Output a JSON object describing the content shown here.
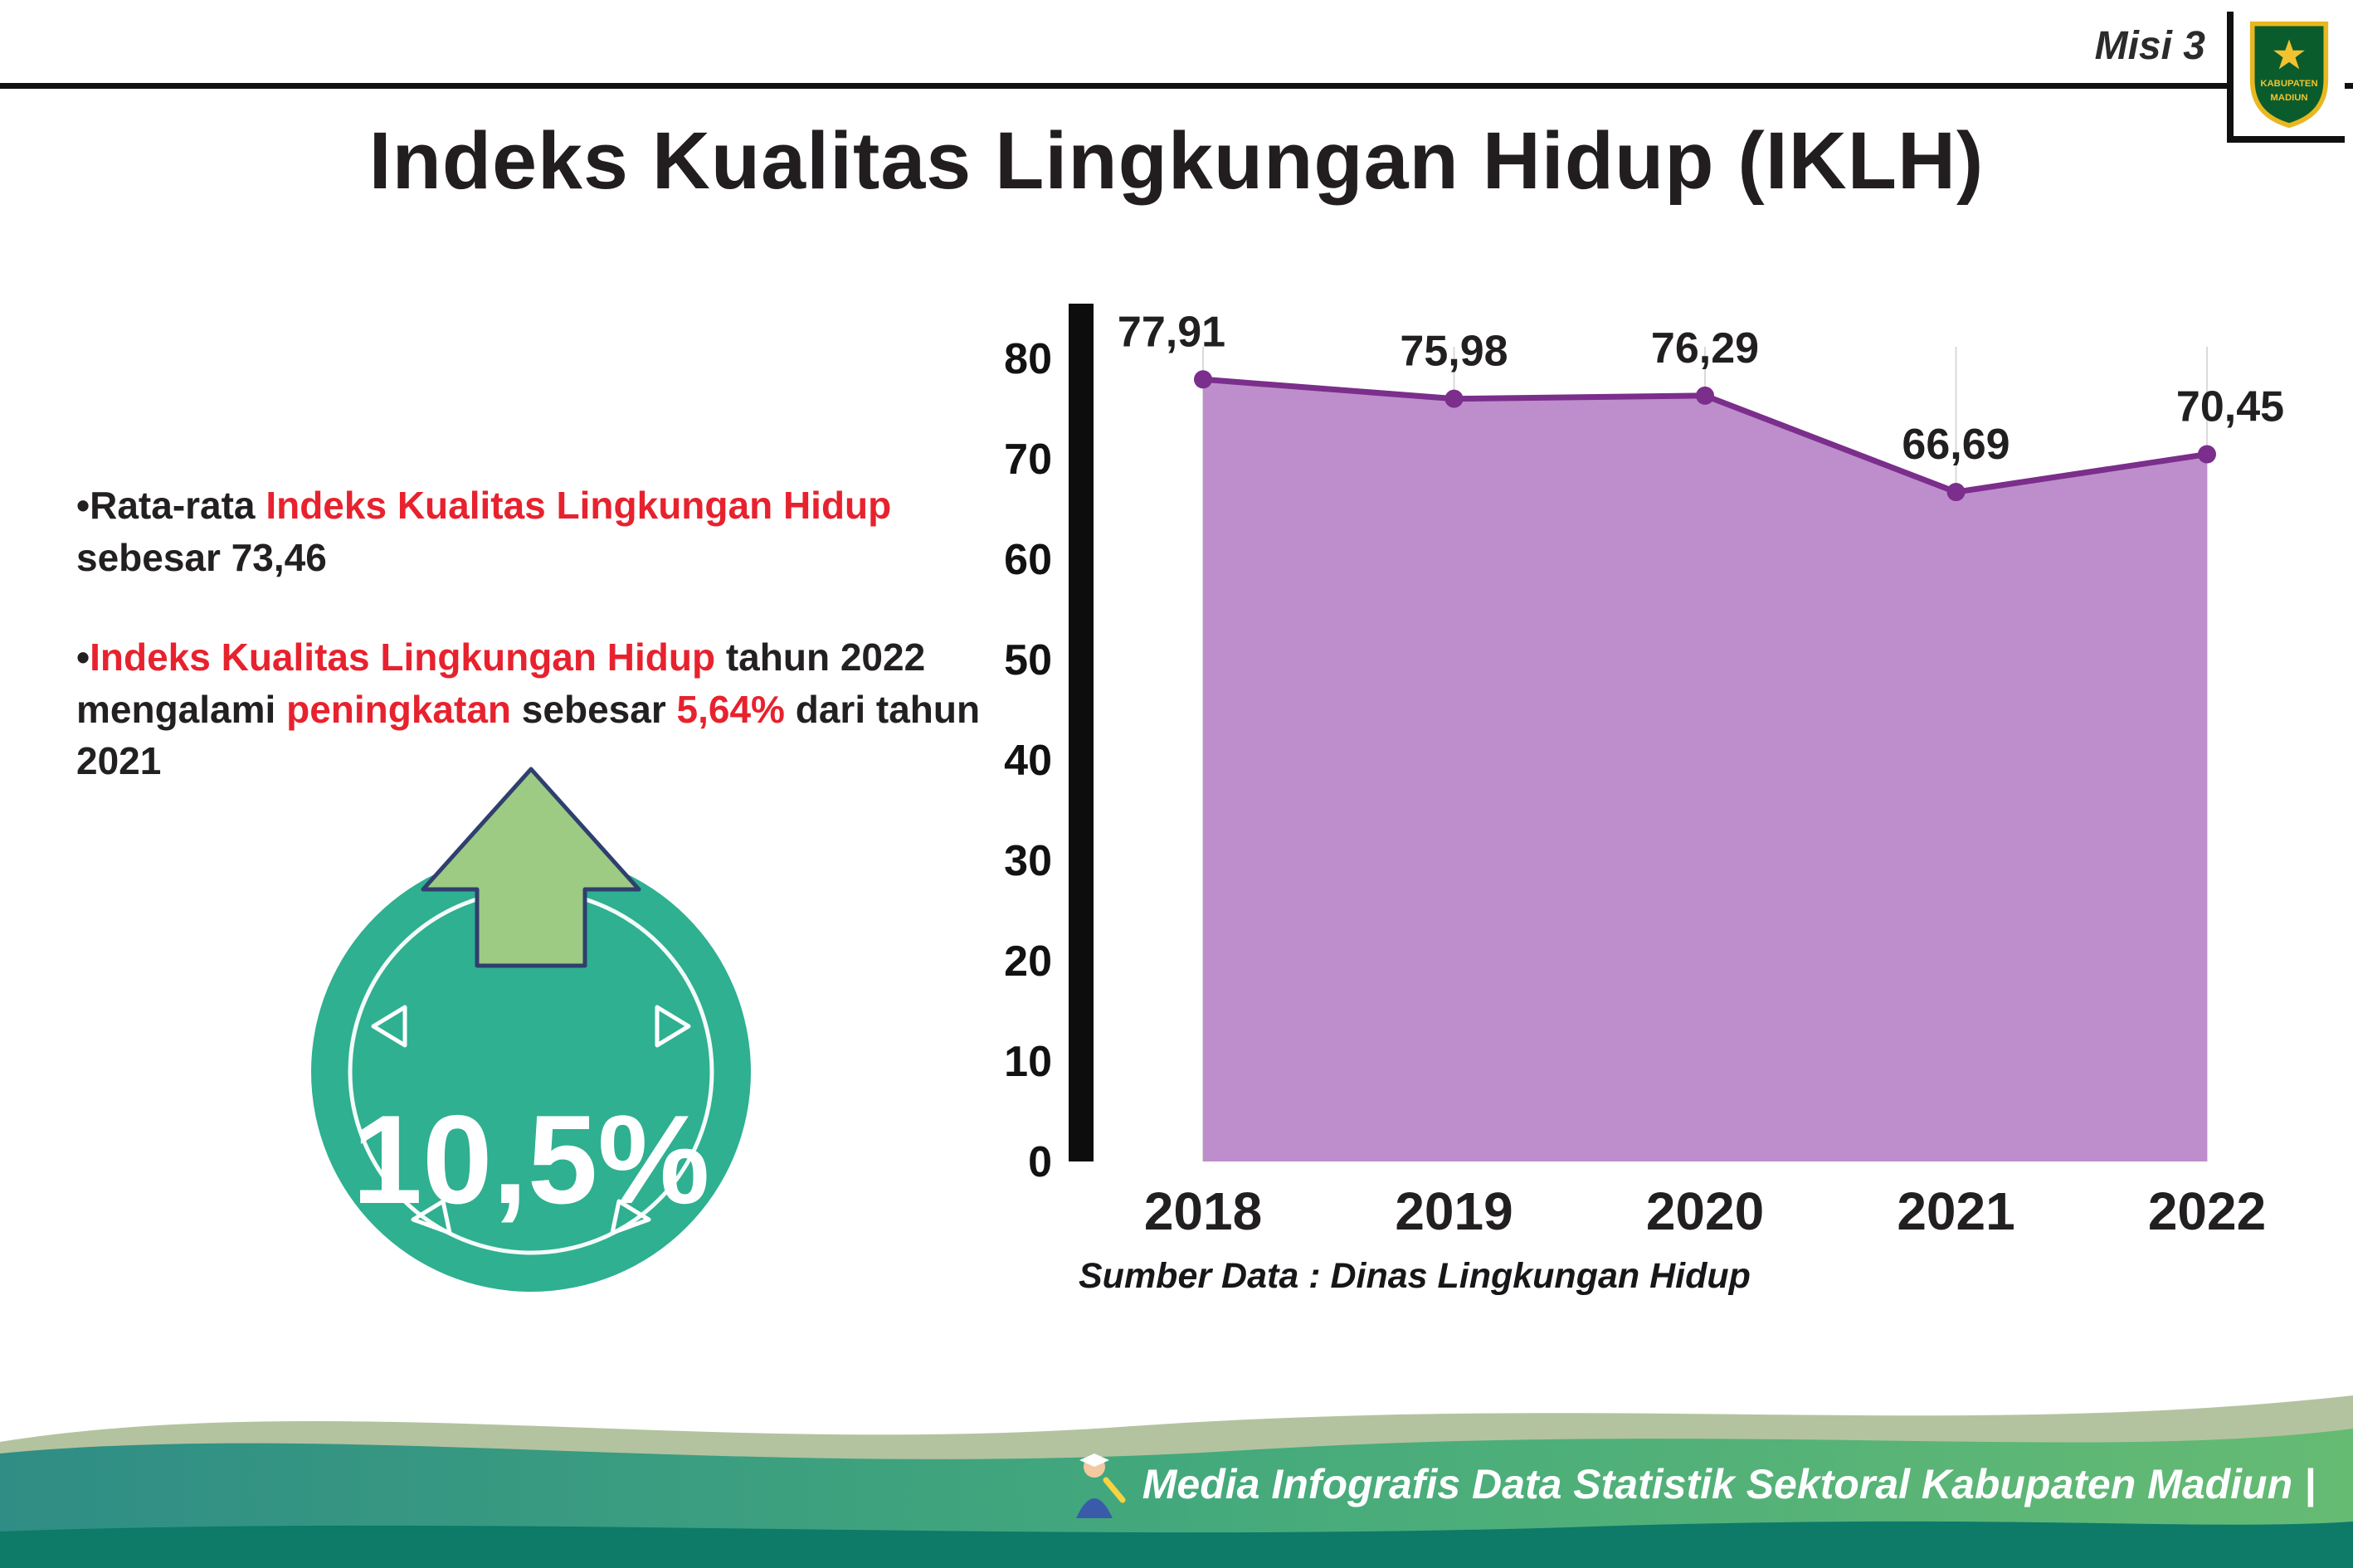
{
  "header": {
    "misi_label": "Misi 3",
    "title": "Indeks Kualitas Lingkungan Hidup (IKLH)",
    "logo": {
      "top_text": "KABUPATEN",
      "bottom_text": "MADIUN"
    }
  },
  "bullets": {
    "marker": "•",
    "b1": {
      "seg0": "Rata-rata ",
      "seg1": "Indeks Kualitas Lingkungan Hidup",
      "seg2": " sebesar 73,46"
    },
    "b2": {
      "seg0": "Indeks Kualitas Lingkungan Hidup",
      "seg1": " tahun 2022 mengalami ",
      "seg2": "peningkatan",
      "seg3": " sebesar ",
      "seg4": "5,64%",
      "seg5": " dari tahun 2021"
    }
  },
  "badge": {
    "value": "10,5%"
  },
  "chart": {
    "source_note": "Sumber Data : Dinas Lingkungan Hidup"
  },
  "chart_data": {
    "type": "area",
    "title": "Indeks Kualitas Lingkungan Hidup (IKLH)",
    "categories": [
      "2018",
      "2019",
      "2020",
      "2021",
      "2022"
    ],
    "values": [
      77.91,
      75.98,
      76.29,
      66.69,
      70.45
    ],
    "value_labels": [
      "77,91",
      "75,98",
      "76,29",
      "66,69",
      "70,45"
    ],
    "xlabel": "",
    "ylabel": "",
    "ylim": [
      0,
      80
    ],
    "yticks": [
      0,
      10,
      20,
      30,
      40,
      50,
      60,
      70,
      80
    ],
    "grid": "vertical-light",
    "legend": "none",
    "fill_color": "#bd8ecb",
    "line_color": "#7b2e8b",
    "source": "Sumber Data : Dinas Lingkungan Hidup"
  },
  "footer": {
    "credit": "Media Infografis Data Statistik Sektoral Kabupaten Madiun |"
  },
  "colors": {
    "accent_red": "#e7222e",
    "badge_teal": "#2eb091",
    "arrow_green": "#9dcb83",
    "area_fill": "#bd8ecb",
    "line_purple": "#7b2e8b",
    "footer_sage": "#b3c39f",
    "footer_dark_teal": "#0e7a68"
  }
}
